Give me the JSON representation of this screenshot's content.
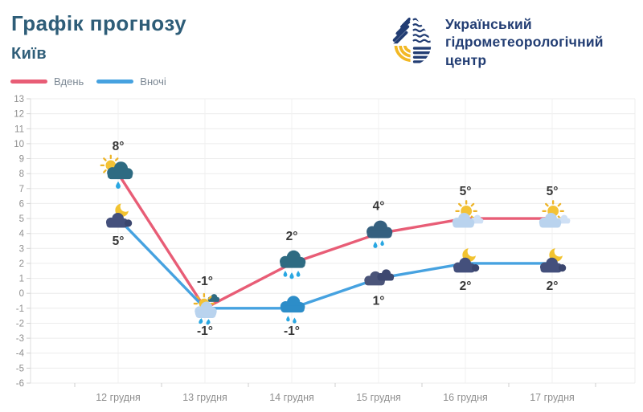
{
  "header": {
    "title": "Графік прогнозу",
    "subtitle": "Київ"
  },
  "logo": {
    "line1": "Український",
    "line2": "гідрометеорологічний",
    "line3": "центр"
  },
  "colors": {
    "title": "#2e5d78",
    "logo_navy": "#223d73",
    "logo_yellow": "#f2b824",
    "day_line": "#e85d76",
    "night_line": "#46a2e0",
    "grid": "#ececec",
    "axis_label": "#8f8f8f",
    "point_label": "#383838",
    "background": "#ffffff"
  },
  "chart_data": {
    "type": "line",
    "title": "Графік прогнозу — Київ",
    "categories": [
      "12 грудня",
      "13 грудня",
      "14 грудня",
      "15 грудня",
      "16 грудня",
      "17 грудня"
    ],
    "xlabel": "",
    "ylabel": "",
    "ylim": [
      -6,
      13
    ],
    "y_tick_step": 1,
    "grid": true,
    "legend_position": "top-left",
    "series": [
      {
        "name": "Вдень",
        "color": "#e85d76",
        "values": [
          8,
          -1,
          2,
          4,
          5,
          5
        ],
        "point_labels": [
          "8°",
          "-1°",
          "2°",
          "4°",
          "5°",
          "5°"
        ],
        "label_side": "above",
        "icons": [
          "sun-cloud-rain-dark",
          "sun-cloud-drizzle",
          "cloud-rain-dark-3",
          "cloud-rain-dark-2",
          "sun-cloud",
          "sun-cloud"
        ]
      },
      {
        "name": "Вночі",
        "color": "#46a2e0",
        "values": [
          5,
          -1,
          -1,
          1,
          2,
          2
        ],
        "point_labels": [
          "5°",
          "-1°",
          "-1°",
          "1°",
          "2°",
          "2°"
        ],
        "label_side": "below",
        "icons": [
          "moon-cloud",
          "cloud-drizzle-light",
          "cloud-rain-blue",
          "clouds-dark",
          "moon-cloud",
          "moon-cloud"
        ]
      }
    ]
  }
}
